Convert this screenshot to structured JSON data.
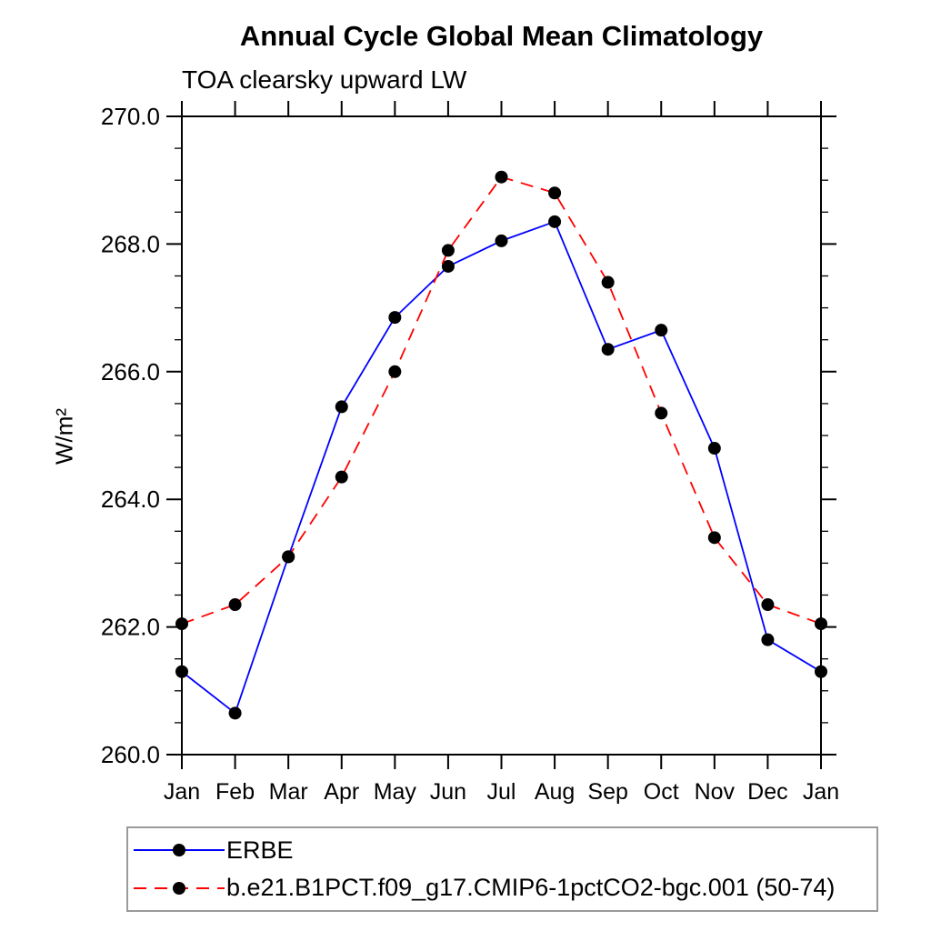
{
  "title": "Annual Cycle Global Mean Climatology",
  "subtitle": "TOA clearsky upward LW",
  "y_axis": {
    "label": "W/m²",
    "min": 260.0,
    "max": 270.0,
    "major_step": 2.0,
    "minor_step": 0.5,
    "major_tick_labels": [
      "260.0",
      "262.0",
      "264.0",
      "266.0",
      "268.0",
      "270.0"
    ]
  },
  "x_axis": {
    "tick_labels": [
      "Jan",
      "Feb",
      "Mar",
      "Apr",
      "May",
      "Jun",
      "Jul",
      "Aug",
      "Sep",
      "Oct",
      "Nov",
      "Dec",
      "Jan"
    ]
  },
  "legend": {
    "entries": [
      {
        "label": "ERBE"
      },
      {
        "label": "b.e21.B1PCT.f09_g17.CMIP6-1pctCO2-bgc.001 (50-74)"
      }
    ]
  },
  "colors": {
    "erbe_line": "#0000ff",
    "model_line": "#ff0000",
    "marker": "#000000",
    "axis": "#000000"
  },
  "chart_data": {
    "type": "line",
    "title": "Annual Cycle Global Mean Climatology",
    "subtitle": "TOA clearsky upward LW",
    "xlabel": "",
    "ylabel": "W/m²",
    "ylim": [
      260.0,
      270.0
    ],
    "y_major_step": 2.0,
    "y_minor_step": 0.5,
    "grid": false,
    "legend_position": "bottom-left",
    "categories": [
      "Jan",
      "Feb",
      "Mar",
      "Apr",
      "May",
      "Jun",
      "Jul",
      "Aug",
      "Sep",
      "Oct",
      "Nov",
      "Dec",
      "Jan"
    ],
    "series": [
      {
        "name": "ERBE",
        "color": "#0000ff",
        "line_style": "solid",
        "marker": "circle",
        "marker_color": "#000000",
        "values": [
          261.3,
          260.65,
          263.1,
          265.45,
          266.85,
          267.65,
          268.05,
          268.35,
          266.35,
          266.65,
          264.8,
          261.8,
          261.3
        ]
      },
      {
        "name": "b.e21.B1PCT.f09_g17.CMIP6-1pctCO2-bgc.001 (50-74)",
        "color": "#ff0000",
        "line_style": "dashed",
        "marker": "circle",
        "marker_color": "#000000",
        "values": [
          262.05,
          262.35,
          263.1,
          264.35,
          266.0,
          267.9,
          269.05,
          268.8,
          267.4,
          265.35,
          263.4,
          262.35,
          262.05
        ]
      }
    ]
  }
}
